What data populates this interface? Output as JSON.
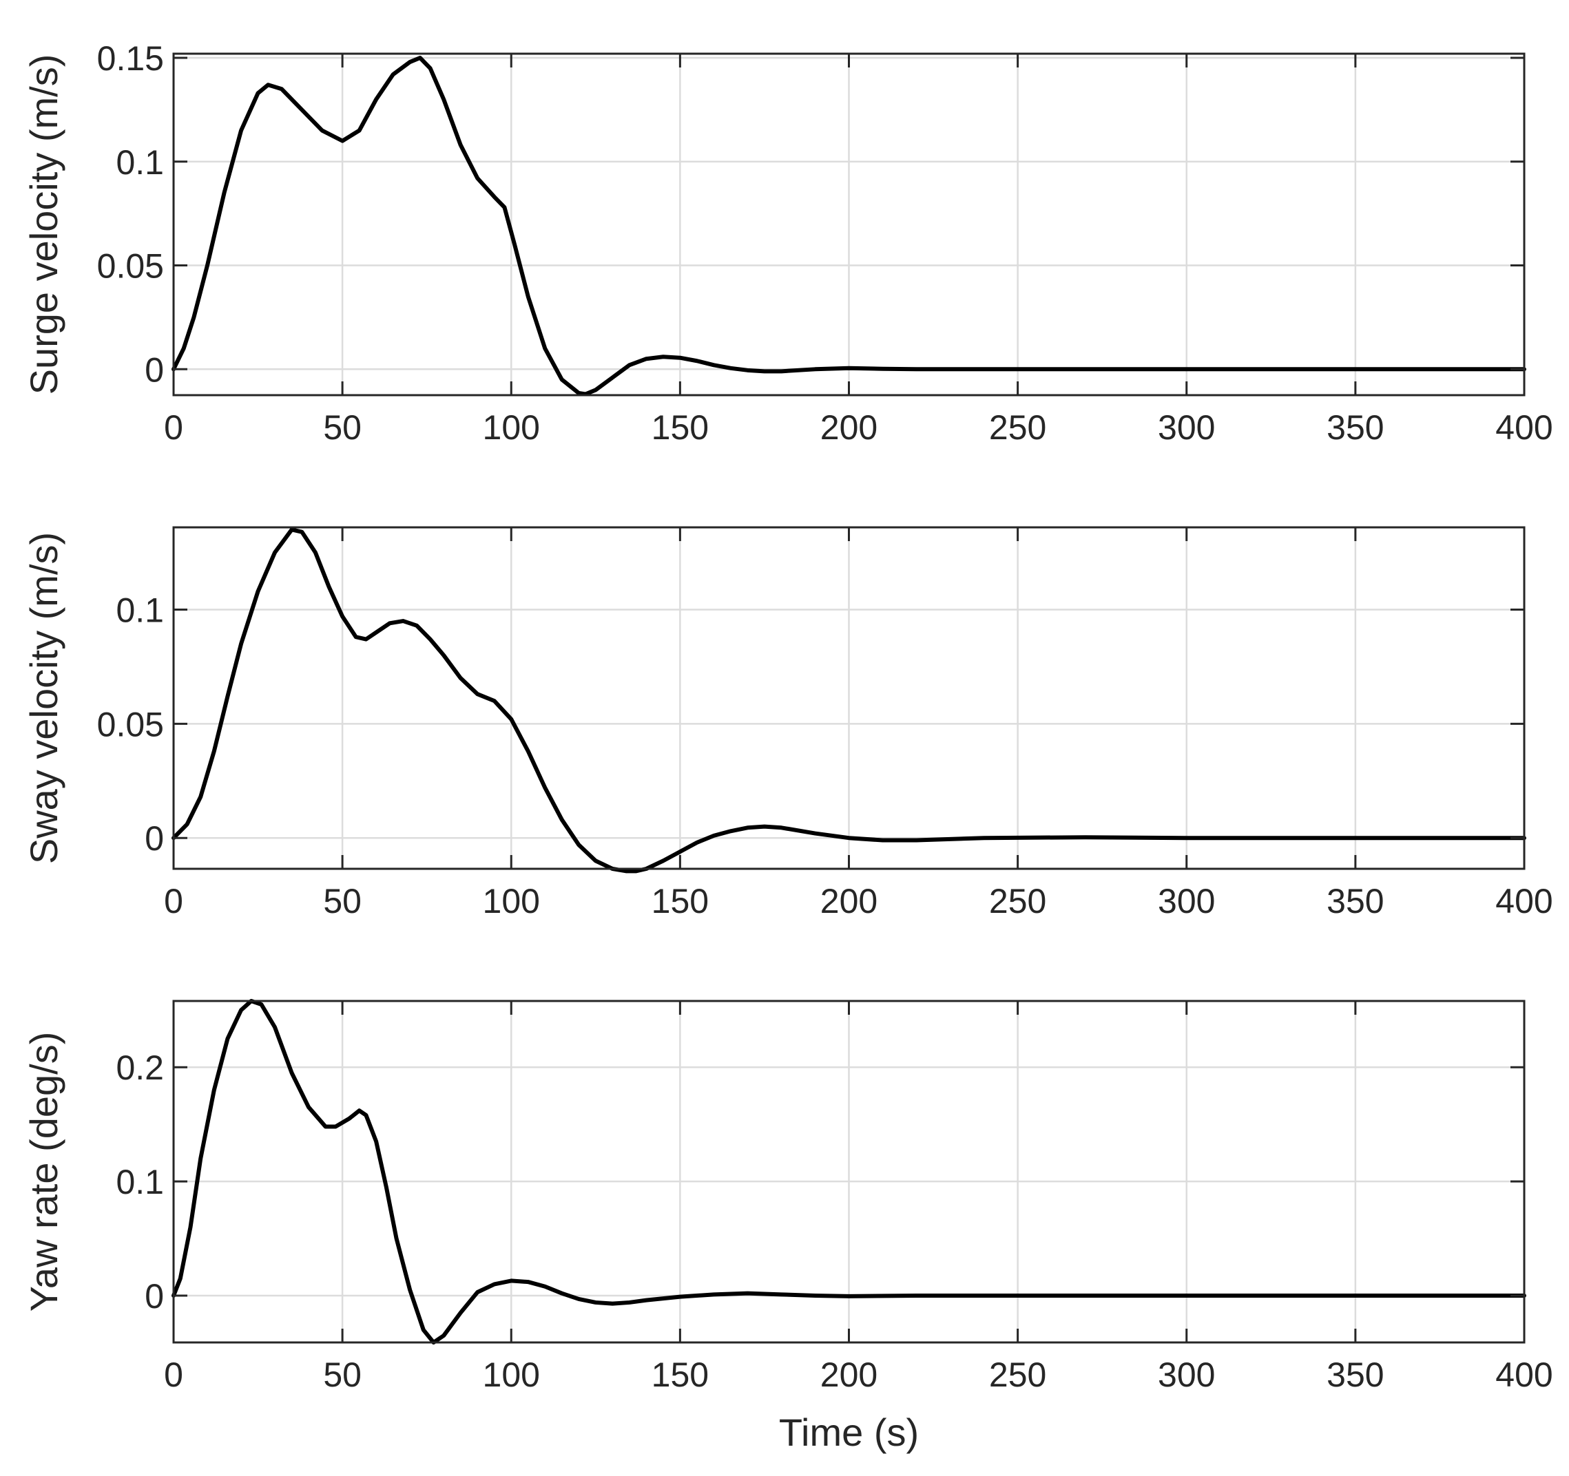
{
  "chart_data": [
    {
      "type": "line",
      "title": "",
      "xlabel": "",
      "ylabel": "Surge velocity (m/s)",
      "xlim": [
        0,
        400
      ],
      "ylim": [
        -0.0125,
        0.152
      ],
      "xticks": [
        0,
        50,
        100,
        150,
        200,
        250,
        300,
        350,
        400
      ],
      "yticks": [
        0,
        0.05,
        0.1,
        0.15
      ],
      "xtick_labels": [
        "0",
        "50",
        "100",
        "150",
        "200",
        "250",
        "300",
        "350",
        "400"
      ],
      "ytick_labels": [
        "0",
        "0.05",
        "0.1",
        "0.15"
      ],
      "grid": true,
      "series": [
        {
          "color": "#000000",
          "x": [
            0,
            3,
            6,
            10,
            15,
            20,
            25,
            28,
            32,
            38,
            44,
            50,
            55,
            60,
            65,
            70,
            73,
            76,
            80,
            85,
            90,
            95,
            98,
            101,
            105,
            110,
            115,
            120,
            122,
            125,
            130,
            135,
            140,
            145,
            150,
            155,
            160,
            165,
            170,
            175,
            180,
            190,
            200,
            210,
            220,
            240,
            260,
            300,
            350,
            400
          ],
          "y": [
            0,
            0.01,
            0.025,
            0.05,
            0.085,
            0.115,
            0.133,
            0.137,
            0.135,
            0.125,
            0.115,
            0.11,
            0.115,
            0.13,
            0.142,
            0.148,
            0.15,
            0.145,
            0.13,
            0.108,
            0.092,
            0.083,
            0.078,
            0.06,
            0.035,
            0.01,
            -0.005,
            -0.0115,
            -0.012,
            -0.01,
            -0.004,
            0.002,
            0.005,
            0.006,
            0.0055,
            0.004,
            0.002,
            0.0005,
            -0.0005,
            -0.001,
            -0.001,
            0,
            0.0005,
            0.0002,
            0,
            0,
            0,
            0,
            0,
            0
          ]
        }
      ]
    },
    {
      "type": "line",
      "title": "",
      "xlabel": "",
      "ylabel": "Sway velocity (m/s)",
      "xlim": [
        0,
        400
      ],
      "ylim": [
        -0.0135,
        0.136
      ],
      "xticks": [
        0,
        50,
        100,
        150,
        200,
        250,
        300,
        350,
        400
      ],
      "yticks": [
        0,
        0.05,
        0.1
      ],
      "xtick_labels": [
        "0",
        "50",
        "100",
        "150",
        "200",
        "250",
        "300",
        "350",
        "400"
      ],
      "ytick_labels": [
        "0",
        "0.05",
        "0.1"
      ],
      "grid": true,
      "series": [
        {
          "color": "#000000",
          "x": [
            0,
            4,
            8,
            12,
            16,
            20,
            25,
            30,
            35,
            38,
            42,
            46,
            50,
            54,
            57,
            60,
            64,
            68,
            72,
            76,
            80,
            85,
            90,
            95,
            100,
            105,
            110,
            115,
            120,
            125,
            130,
            134,
            137,
            140,
            145,
            150,
            155,
            160,
            165,
            170,
            175,
            180,
            190,
            200,
            210,
            220,
            240,
            270,
            300,
            350,
            400
          ],
          "y": [
            0,
            0.006,
            0.018,
            0.038,
            0.062,
            0.085,
            0.108,
            0.125,
            0.135,
            0.134,
            0.125,
            0.11,
            0.097,
            0.088,
            0.087,
            0.09,
            0.094,
            0.095,
            0.093,
            0.087,
            0.08,
            0.07,
            0.063,
            0.06,
            0.052,
            0.038,
            0.022,
            0.008,
            -0.003,
            -0.01,
            -0.0135,
            -0.0145,
            -0.0145,
            -0.0135,
            -0.01,
            -0.006,
            -0.002,
            0.001,
            0.003,
            0.0045,
            0.005,
            0.0045,
            0.002,
            0,
            -0.001,
            -0.001,
            0,
            0.0003,
            0,
            0,
            0
          ]
        }
      ]
    },
    {
      "type": "line",
      "title": "",
      "xlabel": "Time (s)",
      "ylabel": "Yaw rate (deg/s)",
      "xlim": [
        0,
        400
      ],
      "ylim": [
        -0.041,
        0.258
      ],
      "xticks": [
        0,
        50,
        100,
        150,
        200,
        250,
        300,
        350,
        400
      ],
      "yticks": [
        0,
        0.1,
        0.2
      ],
      "xtick_labels": [
        "0",
        "50",
        "100",
        "150",
        "200",
        "250",
        "300",
        "350",
        "400"
      ],
      "ytick_labels": [
        "0",
        "0.1",
        "0.2"
      ],
      "grid": true,
      "series": [
        {
          "color": "#000000",
          "x": [
            0,
            2,
            5,
            8,
            12,
            16,
            20,
            23,
            26,
            30,
            35,
            40,
            45,
            48,
            52,
            55,
            57,
            60,
            63,
            66,
            70,
            74,
            77,
            80,
            85,
            90,
            95,
            100,
            105,
            110,
            115,
            120,
            125,
            130,
            135,
            140,
            150,
            160,
            170,
            180,
            190,
            200,
            220,
            250,
            300,
            350,
            400
          ],
          "y": [
            0,
            0.015,
            0.06,
            0.12,
            0.18,
            0.225,
            0.25,
            0.258,
            0.255,
            0.235,
            0.195,
            0.165,
            0.148,
            0.148,
            0.155,
            0.162,
            0.158,
            0.135,
            0.095,
            0.05,
            0.005,
            -0.03,
            -0.041,
            -0.035,
            -0.015,
            0.003,
            0.01,
            0.013,
            0.012,
            0.008,
            0.002,
            -0.003,
            -0.006,
            -0.007,
            -0.006,
            -0.004,
            -0.001,
            0.001,
            0.002,
            0.001,
            0,
            -0.0005,
            0,
            0,
            0,
            0,
            0
          ]
        }
      ]
    }
  ]
}
